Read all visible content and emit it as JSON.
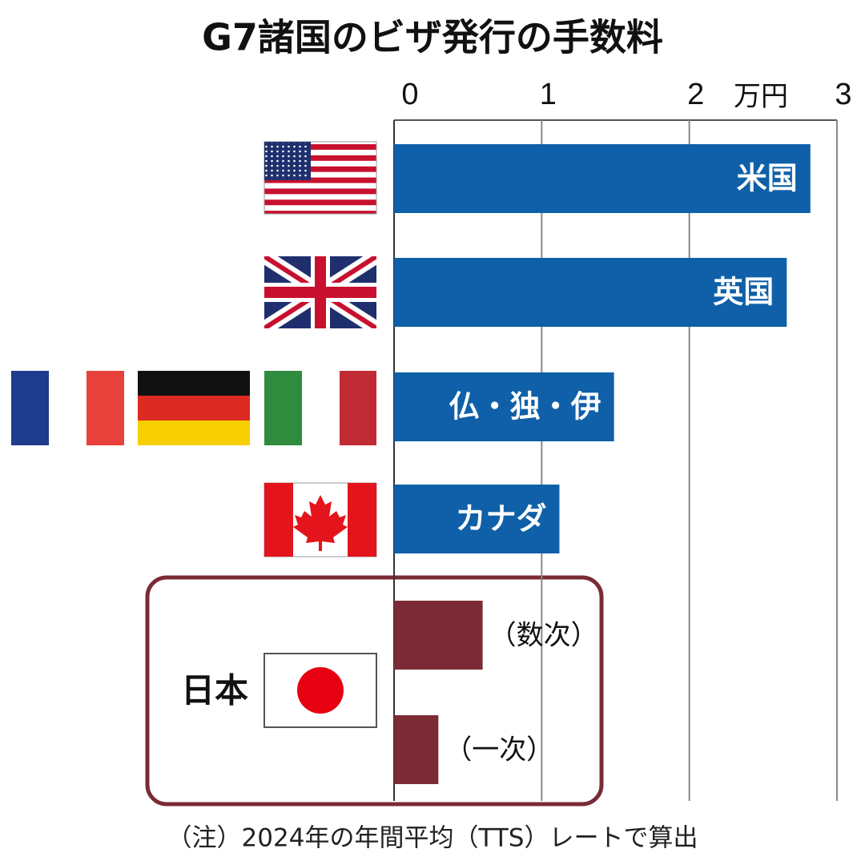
{
  "chart_data": {
    "type": "bar",
    "orientation": "horizontal",
    "title": "G7諸国のビザ発行の手数料",
    "unit": "万円",
    "categories": [
      "米国",
      "英国",
      "仏・独・伊",
      "カナダ",
      "（数次）",
      "（一次）"
    ],
    "values": [
      2.82,
      2.66,
      1.49,
      1.12,
      0.6,
      0.3
    ],
    "colors": [
      "#0f60a8",
      "#0f60a8",
      "#0f60a8",
      "#0f60a8",
      "#7a2b35",
      "#7a2b35"
    ],
    "group_label": "日本",
    "xlim": [
      0,
      3
    ],
    "xticks": [
      0,
      1,
      2,
      3
    ],
    "grid": true,
    "note": "（注）2024年の年間平均（TTS）レートで算出"
  }
}
